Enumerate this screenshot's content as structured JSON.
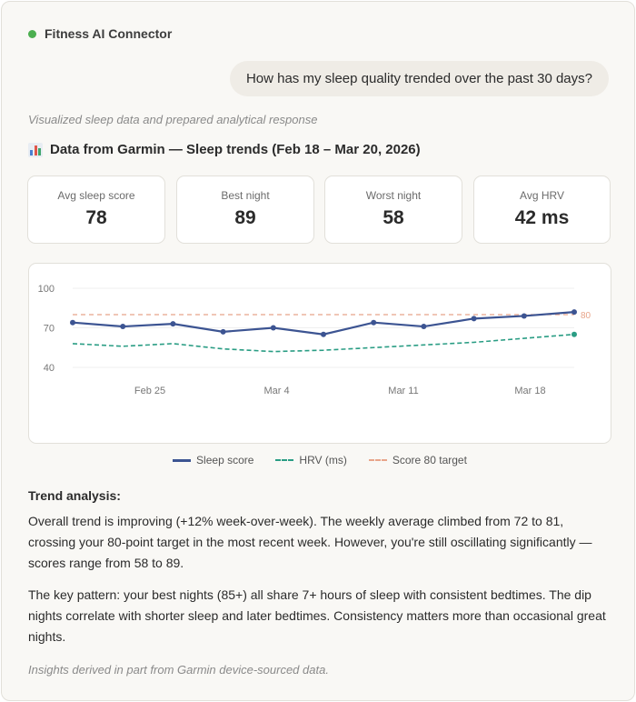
{
  "header": {
    "app_title": "Fitness AI Connector",
    "status_color": "#4caf50"
  },
  "conversation": {
    "user_message": "How has my sleep quality trended over the past 30 days?",
    "activity_note": "Visualized sleep data and prepared analytical response"
  },
  "source": {
    "icon": "bar-chart-icon",
    "heading": "Data from Garmin — Sleep trends (Feb 18 – Mar 20, 2026)"
  },
  "stats": [
    {
      "label": "Avg sleep score",
      "value": "78"
    },
    {
      "label": "Best night",
      "value": "89"
    },
    {
      "label": "Worst night",
      "value": "58"
    },
    {
      "label": "Avg HRV",
      "value": "42 ms"
    }
  ],
  "chart_data": {
    "type": "line",
    "x": [
      0,
      3,
      6,
      9,
      12,
      15,
      18,
      21,
      24,
      27,
      30
    ],
    "x_ticks": [
      "Feb 25",
      "Mar 4",
      "Mar 11",
      "Mar 18"
    ],
    "y_ticks": [
      "100",
      "70",
      "40"
    ],
    "ylim": [
      40,
      100
    ],
    "grid": true,
    "series": [
      {
        "name": "Sleep score",
        "color": "#3c5492",
        "style": "solid",
        "markers": true,
        "values": [
          74,
          71,
          73,
          67,
          70,
          65,
          74,
          71,
          77,
          79,
          82
        ]
      },
      {
        "name": "HRV (ms)",
        "color": "#2a9d84",
        "style": "dashed",
        "marker_last": true,
        "values": [
          58,
          56,
          58,
          54,
          52,
          53,
          55,
          57,
          59,
          62,
          65
        ]
      }
    ],
    "target": {
      "name": "Score 80 target",
      "value": 80,
      "label": "80",
      "color": "#e8a58a"
    }
  },
  "analysis": {
    "title": "Trend analysis:",
    "paragraph1": "Overall trend is improving (+12% week-over-week). The weekly average climbed from 72 to 81, crossing your 80-point target in the most recent week. However, you're still oscillating significantly — scores range from 58 to 89.",
    "paragraph2": "The key pattern: your best nights (85+) all share 7+ hours of sleep with consistent bedtimes. The dip nights correlate with shorter sleep and later bedtimes. Consistency matters more than occasional great nights."
  },
  "footer_note": "Insights derived in part from Garmin device-sourced data."
}
